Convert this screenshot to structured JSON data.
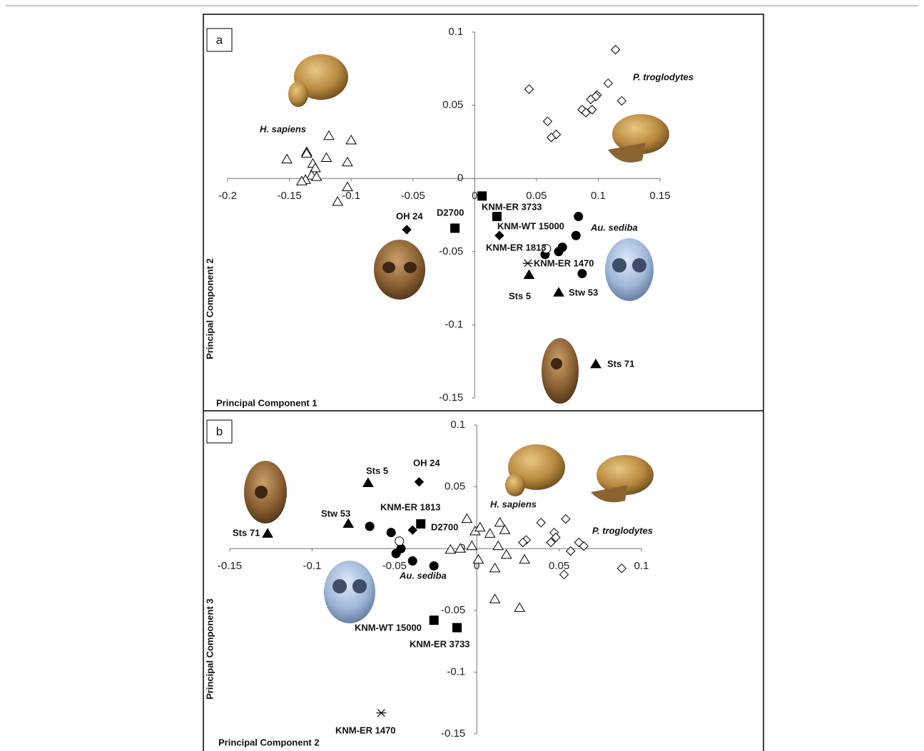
{
  "chart_data": [
    {
      "type": "scatter",
      "panel": "a",
      "xlabel": "Principal Component 1",
      "ylabel": "Principal Component 2",
      "xlim": [
        -0.2,
        0.15
      ],
      "ylim": [
        -0.15,
        0.1
      ],
      "xticks": [
        -0.2,
        -0.15,
        -0.1,
        -0.05,
        0,
        0.05,
        0.1,
        0.15
      ],
      "yticks": [
        -0.15,
        -0.1,
        -0.05,
        0,
        0.05,
        0.1
      ],
      "color": "#000000",
      "series": [
        {
          "name": "H. sapiens",
          "marker": "open-triangle",
          "x": [
            -0.152,
            -0.136,
            -0.136,
            -0.118,
            -0.1,
            -0.12,
            -0.131,
            -0.129,
            -0.132,
            -0.128,
            -0.137,
            -0.14,
            -0.103,
            -0.103,
            -0.111
          ],
          "values": [
            0.013,
            0.018,
            0.017,
            0.029,
            0.026,
            0.014,
            0.01,
            0.007,
            0.002,
            0.001,
            -0.001,
            -0.002,
            0.011,
            -0.006,
            -0.016
          ]
        },
        {
          "name": "P. troglodytes",
          "marker": "open-diamond",
          "x": [
            0.044,
            0.114,
            0.108,
            0.119,
            0.099,
            0.098,
            0.094,
            0.087,
            0.095,
            0.09,
            0.059,
            0.066,
            0.062
          ],
          "values": [
            0.061,
            0.088,
            0.065,
            0.053,
            0.057,
            0.056,
            0.054,
            0.047,
            0.047,
            0.045,
            0.039,
            0.03,
            0.028
          ]
        },
        {
          "name": "Au. sediba",
          "marker": "circle",
          "x": [
            0.084,
            0.082,
            0.071,
            0.068,
            0.057,
            0.087
          ],
          "values": [
            -0.026,
            -0.039,
            -0.047,
            -0.05,
            -0.052,
            -0.065
          ]
        },
        {
          "marker": "open-circle",
          "x": [
            0.058
          ],
          "values": [
            -0.048
          ]
        },
        {
          "name": "OH 24",
          "marker": "diamond",
          "x": [
            -0.055
          ],
          "values": [
            -0.035
          ]
        },
        {
          "name": "D2700",
          "marker": "square",
          "x": [
            -0.016
          ],
          "values": [
            -0.034
          ]
        },
        {
          "name": "KNM-ER 3733",
          "marker": "square",
          "x": [
            0.006
          ],
          "values": [
            -0.012
          ]
        },
        {
          "name": "KNM-WT 15000",
          "marker": "square",
          "x": [
            0.018
          ],
          "values": [
            -0.026
          ]
        },
        {
          "name": "KNM-ER 1813",
          "marker": "diamond",
          "x": [
            0.02
          ],
          "values": [
            -0.039
          ]
        },
        {
          "name": "KNM-ER 1470",
          "marker": "asterisk",
          "x": [
            0.043
          ],
          "values": [
            -0.058
          ]
        },
        {
          "name": "Sts 5",
          "marker": "triangle",
          "x": [
            0.044
          ],
          "values": [
            -0.066
          ]
        },
        {
          "name": "Stw 53",
          "marker": "triangle",
          "x": [
            0.068
          ],
          "values": [
            -0.078
          ]
        },
        {
          "name": "Sts 71",
          "marker": "triangle",
          "x": [
            0.098
          ],
          "values": [
            -0.127
          ]
        }
      ]
    },
    {
      "type": "scatter",
      "panel": "b",
      "xlabel": "Principal Component 2",
      "ylabel": "Principal Component 3",
      "xlim": [
        -0.15,
        0.1
      ],
      "ylim": [
        -0.15,
        0.1
      ],
      "xticks": [
        -0.15,
        -0.1,
        -0.05,
        0,
        0.05,
        0.1
      ],
      "yticks": [
        -0.15,
        -0.1,
        -0.05,
        0,
        0.05,
        0.1
      ],
      "color": "#000000",
      "series": [
        {
          "name": "H. sapiens",
          "marker": "open-triangle",
          "x": [
            -0.006,
            -0.001,
            0.002,
            0.008,
            0.014,
            0.017,
            0.013,
            0.018,
            -0.003,
            -0.01,
            -0.016,
            0.001,
            0.011,
            0.029,
            0.011,
            0.026
          ],
          "values": [
            0.024,
            0.014,
            0.017,
            0.012,
            0.021,
            0.015,
            0.002,
            -0.005,
            0.002,
            0.0,
            -0.001,
            -0.009,
            -0.016,
            -0.009,
            -0.041,
            -0.048
          ]
        },
        {
          "name": "P. troglodytes",
          "marker": "open-diamond",
          "x": [
            0.039,
            0.054,
            0.047,
            0.048,
            0.045,
            0.03,
            0.028,
            0.062,
            0.065,
            0.057,
            0.088,
            0.053
          ],
          "values": [
            0.021,
            0.024,
            0.013,
            0.009,
            0.005,
            0.007,
            0.005,
            0.005,
            0.002,
            -0.002,
            -0.016,
            -0.021
          ]
        },
        {
          "name": "Au. sediba",
          "marker": "circle",
          "x": [
            -0.065,
            -0.052,
            -0.046,
            -0.049,
            -0.039,
            -0.026
          ],
          "values": [
            0.018,
            0.013,
            0.0,
            -0.004,
            -0.01,
            -0.014
          ]
        },
        {
          "marker": "open-circle",
          "x": [
            -0.047
          ],
          "values": [
            0.006
          ]
        },
        {
          "name": "OH 24",
          "marker": "diamond",
          "x": [
            -0.035
          ],
          "values": [
            0.054
          ]
        },
        {
          "name": "D2700",
          "marker": "square",
          "x": [
            -0.034
          ],
          "values": [
            0.02
          ]
        },
        {
          "name": "KNM-ER 3733",
          "marker": "square",
          "x": [
            -0.012
          ],
          "values": [
            -0.064
          ]
        },
        {
          "name": "KNM-WT 15000",
          "marker": "square",
          "x": [
            -0.026
          ],
          "values": [
            -0.058
          ]
        },
        {
          "name": "KNM-ER 1813",
          "marker": "diamond",
          "x": [
            -0.039
          ],
          "values": [
            0.015
          ]
        },
        {
          "name": "KNM-ER 1470",
          "marker": "asterisk",
          "x": [
            -0.058
          ],
          "values": [
            -0.133
          ]
        },
        {
          "name": "Sts 5",
          "marker": "triangle",
          "x": [
            -0.066
          ],
          "values": [
            0.053
          ]
        },
        {
          "name": "Stw 53",
          "marker": "triangle",
          "x": [
            -0.078
          ],
          "values": [
            0.02
          ]
        },
        {
          "name": "Sts 71",
          "marker": "triangle",
          "x": [
            -0.127
          ],
          "values": [
            0.012
          ]
        }
      ]
    }
  ]
}
